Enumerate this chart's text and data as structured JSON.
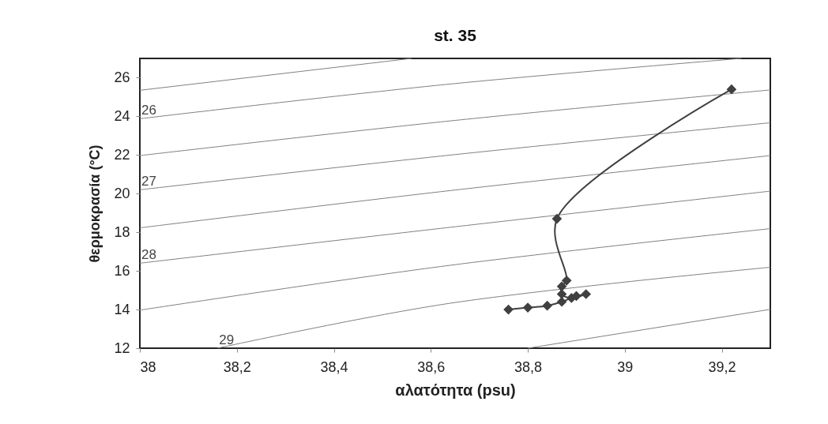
{
  "chart_data": {
    "type": "line",
    "title": "st. 35",
    "xlabel": "αλατότητα (psu)",
    "ylabel": "θερμοκρασία (°C)",
    "xlim": [
      38,
      39.3
    ],
    "ylim": [
      12,
      27
    ],
    "xticks": [
      38,
      {
        "value": 38.2,
        "label": "38,2"
      },
      {
        "value": 38.4,
        "label": "38,4"
      },
      {
        "value": 38.6,
        "label": "38,6"
      },
      {
        "value": 38.8,
        "label": "38,8"
      },
      39,
      {
        "value": 39.2,
        "label": "39,2"
      }
    ],
    "yticks": [
      12,
      14,
      16,
      18,
      20,
      22,
      24,
      26
    ],
    "series": [
      {
        "marker": "none",
        "color": "#808080",
        "x": [
          38,
          38.56
        ],
        "values": [
          25.35,
          27
        ]
      },
      {
        "marker": "none",
        "name": "26",
        "color": "#808080",
        "x": [
          38,
          38.63,
          39.24
        ],
        "values": [
          23.88,
          25.65,
          27
        ]
      },
      {
        "marker": "none",
        "color": "#808080",
        "x": [
          38,
          38.63,
          39.3
        ],
        "values": [
          21.97,
          23.74,
          25.37
        ]
      },
      {
        "marker": "none",
        "name": "27",
        "color": "#808080",
        "x": [
          38,
          38.63,
          39.3
        ],
        "values": [
          20.2,
          21.97,
          23.67
        ]
      },
      {
        "marker": "none",
        "color": "#808080",
        "x": [
          38,
          38.63,
          39.3
        ],
        "values": [
          18.23,
          20.13,
          21.97
        ]
      },
      {
        "marker": "none",
        "name": "28",
        "color": "#808080",
        "x": [
          38,
          38.63,
          39.3
        ],
        "values": [
          16.4,
          18.23,
          20.13
        ]
      },
      {
        "marker": "none",
        "color": "#808080",
        "x": [
          38,
          38.63,
          39.3
        ],
        "values": [
          13.97,
          16.26,
          18.19
        ]
      },
      {
        "marker": "none",
        "name": "29",
        "color": "#808080",
        "x": [
          38.16,
          38.63,
          39.3
        ],
        "values": [
          12,
          14.29,
          16.19
        ]
      },
      {
        "marker": "none",
        "color": "#808080",
        "x": [
          38.8,
          39.3
        ],
        "values": [
          12,
          14.01
        ]
      },
      {
        "marker": "diamond",
        "color": "#404040",
        "x": [
          39.22,
          38.86,
          38.88,
          38.87,
          38.87,
          38.89,
          38.92,
          38.9,
          38.87,
          38.84,
          38.8,
          38.76
        ],
        "values": [
          25.4,
          18.7,
          15.5,
          15.2,
          14.8,
          14.6,
          14.8,
          14.7,
          14.4,
          14.2,
          14.1,
          14.0
        ]
      }
    ]
  }
}
